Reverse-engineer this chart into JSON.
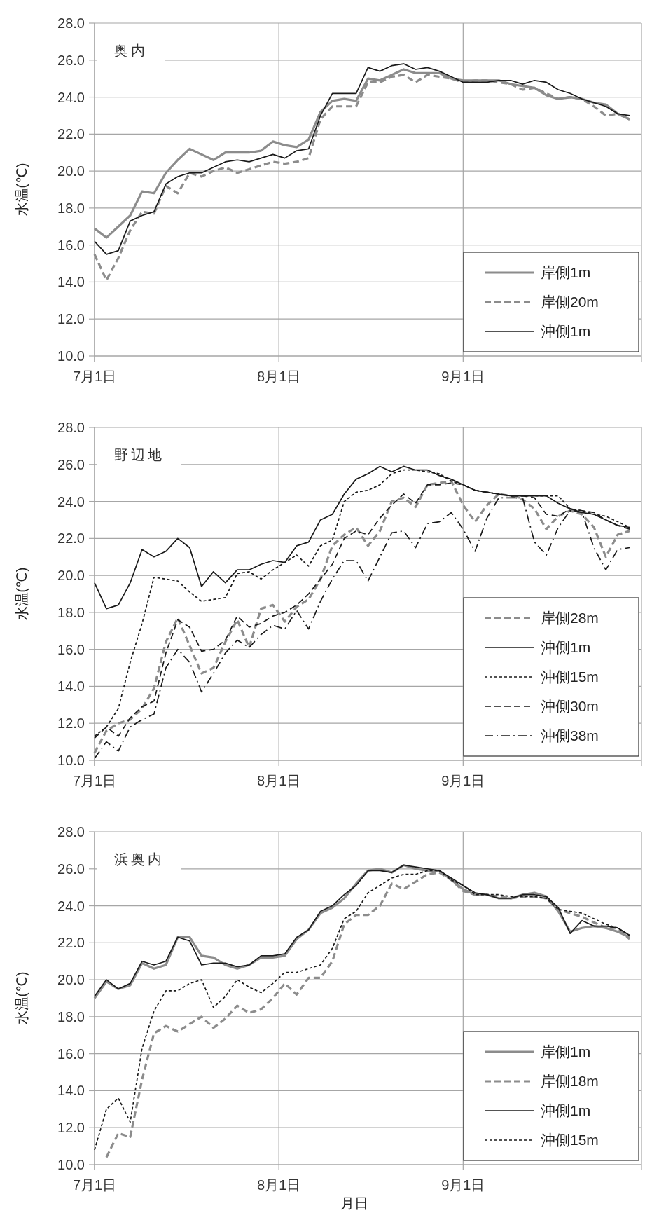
{
  "chart_data": [
    {
      "type": "line",
      "title": "奥内",
      "ylabel": "水温(℃)",
      "grid": true,
      "legend": "bottom right",
      "xlim": [
        "--07-01",
        "--10-01"
      ],
      "xticks": [
        {
          "value": "--07-01",
          "label": "7月1日"
        },
        {
          "value": "--08-01",
          "label": "8月1日"
        },
        {
          "value": "--09-01",
          "label": "9月1日"
        }
      ],
      "ylim": [
        10,
        28
      ],
      "yticks": [
        {
          "value": 10,
          "label": "10.0"
        },
        {
          "value": 12,
          "label": "12.0"
        },
        {
          "value": 14,
          "label": "14.0"
        },
        {
          "value": 16,
          "label": "16.0"
        },
        {
          "value": 18,
          "label": "18.0"
        },
        {
          "value": 20,
          "label": "20.0"
        },
        {
          "value": 22,
          "label": "22.0"
        },
        {
          "value": 24,
          "label": "24.0"
        },
        {
          "value": 26,
          "label": "26.0"
        },
        {
          "value": 28,
          "label": "28.0"
        }
      ],
      "x": [
        "--07-01",
        "--07-03",
        "--07-05",
        "--07-07",
        "--07-09",
        "--07-11",
        "--07-13",
        "--07-15",
        "--07-17",
        "--07-19",
        "--07-21",
        "--07-23",
        "--07-25",
        "--07-27",
        "--07-29",
        "--07-31",
        "--08-02",
        "--08-04",
        "--08-06",
        "--08-08",
        "--08-10",
        "--08-12",
        "--08-14",
        "--08-16",
        "--08-18",
        "--08-20",
        "--08-22",
        "--08-24",
        "--08-26",
        "--08-28",
        "--08-30",
        "--09-01",
        "--09-03",
        "--09-05",
        "--09-07",
        "--09-09",
        "--09-11",
        "--09-13",
        "--09-15",
        "--09-17",
        "--09-19",
        "--09-21",
        "--09-23",
        "--09-25",
        "--09-27",
        "--09-29"
      ],
      "series": [
        {
          "name": "岸側1m",
          "color": "#8c8c8c",
          "line_style": "solid",
          "values": [
            16.9,
            16.4,
            17.0,
            17.6,
            18.9,
            18.8,
            19.9,
            20.6,
            21.2,
            20.9,
            20.6,
            21.0,
            21.0,
            21.0,
            21.1,
            21.6,
            21.4,
            21.3,
            21.7,
            23.2,
            23.8,
            23.9,
            23.8,
            25.0,
            24.9,
            25.2,
            25.5,
            25.3,
            25.3,
            25.3,
            25.0,
            24.9,
            24.9,
            24.9,
            24.9,
            24.7,
            24.6,
            24.5,
            24.1,
            23.9,
            24.0,
            23.9,
            23.7,
            23.6,
            23.1,
            22.8
          ]
        },
        {
          "name": "岸側20m",
          "color": "#8c8c8c",
          "line_style": "dashed",
          "values": [
            15.5,
            14.1,
            15.3,
            16.8,
            17.8,
            17.7,
            19.2,
            18.8,
            19.9,
            19.7,
            20.0,
            20.2,
            19.9,
            20.1,
            20.3,
            20.5,
            20.4,
            20.5,
            20.7,
            22.8,
            23.5,
            23.5,
            23.5,
            24.8,
            24.8,
            25.1,
            25.2,
            24.8,
            25.2,
            25.1,
            25.0,
            24.8,
            24.9,
            24.9,
            24.8,
            24.7,
            24.4,
            24.5,
            24.2,
            23.9,
            24.0,
            23.9,
            23.5,
            23.0,
            23.1,
            22.8
          ]
        },
        {
          "name": "沖側1m",
          "color": "#1a1a1a",
          "line_style": "solid",
          "values": [
            16.2,
            15.5,
            15.7,
            17.3,
            17.6,
            17.8,
            19.3,
            19.7,
            19.9,
            19.9,
            20.2,
            20.5,
            20.6,
            20.5,
            20.7,
            20.9,
            20.7,
            21.1,
            21.2,
            23.0,
            24.2,
            24.2,
            24.2,
            25.6,
            25.4,
            25.7,
            25.8,
            25.5,
            25.6,
            25.4,
            25.1,
            24.8,
            24.8,
            24.8,
            24.9,
            24.9,
            24.7,
            24.9,
            24.8,
            24.4,
            24.2,
            23.9,
            23.7,
            23.5,
            23.1,
            23.0
          ]
        }
      ]
    },
    {
      "type": "line",
      "title": "野辺地",
      "ylabel": "水温(℃)",
      "grid": true,
      "legend": "bottom right",
      "xlim": [
        "--07-01",
        "--10-01"
      ],
      "xticks": [
        {
          "value": "--07-01",
          "label": "7月1日"
        },
        {
          "value": "--08-01",
          "label": "8月1日"
        },
        {
          "value": "--09-01",
          "label": "9月1日"
        }
      ],
      "ylim": [
        10,
        28
      ],
      "yticks": [
        {
          "value": 10,
          "label": "10.0"
        },
        {
          "value": 12,
          "label": "12.0"
        },
        {
          "value": 14,
          "label": "14.0"
        },
        {
          "value": 16,
          "label": "16.0"
        },
        {
          "value": 18,
          "label": "18.0"
        },
        {
          "value": 20,
          "label": "20.0"
        },
        {
          "value": 22,
          "label": "22.0"
        },
        {
          "value": 24,
          "label": "24.0"
        },
        {
          "value": 26,
          "label": "26.0"
        },
        {
          "value": 28,
          "label": "28.0"
        }
      ],
      "x": [
        "--07-01",
        "--07-03",
        "--07-05",
        "--07-07",
        "--07-09",
        "--07-11",
        "--07-13",
        "--07-15",
        "--07-17",
        "--07-19",
        "--07-21",
        "--07-23",
        "--07-25",
        "--07-27",
        "--07-29",
        "--07-31",
        "--08-02",
        "--08-04",
        "--08-06",
        "--08-08",
        "--08-10",
        "--08-12",
        "--08-14",
        "--08-16",
        "--08-18",
        "--08-20",
        "--08-22",
        "--08-24",
        "--08-26",
        "--08-28",
        "--08-30",
        "--09-01",
        "--09-03",
        "--09-05",
        "--09-07",
        "--09-09",
        "--09-11",
        "--09-13",
        "--09-15",
        "--09-17",
        "--09-19",
        "--09-21",
        "--09-23",
        "--09-25",
        "--09-27",
        "--09-29"
      ],
      "series": [
        {
          "name": "岸側28m",
          "color": "#8c8c8c",
          "line_style": "dashed",
          "values": [
            10.4,
            11.6,
            12.0,
            12.2,
            12.8,
            13.9,
            16.4,
            17.7,
            16.2,
            14.7,
            15.0,
            16.4,
            17.6,
            16.1,
            18.2,
            18.4,
            17.5,
            18.3,
            18.7,
            19.8,
            21.6,
            22.2,
            22.6,
            21.6,
            22.4,
            24.0,
            24.2,
            23.7,
            24.9,
            25.0,
            25.1,
            23.8,
            22.9,
            23.8,
            24.4,
            24.3,
            24.1,
            23.6,
            22.5,
            23.2,
            23.5,
            23.3,
            22.6,
            21.0,
            22.2,
            22.4
          ]
        },
        {
          "name": "沖側1m",
          "color": "#1a1a1a",
          "line_style": "solid",
          "values": [
            19.6,
            18.2,
            18.4,
            19.6,
            21.4,
            21.0,
            21.3,
            22.0,
            21.5,
            19.4,
            20.2,
            19.6,
            20.3,
            20.3,
            20.6,
            20.8,
            20.7,
            21.6,
            21.8,
            23.0,
            23.3,
            24.4,
            25.2,
            25.5,
            25.9,
            25.6,
            25.9,
            25.7,
            25.7,
            25.4,
            25.2,
            24.9,
            24.6,
            24.5,
            24.4,
            24.3,
            24.3,
            24.3,
            24.3,
            23.9,
            23.6,
            23.4,
            23.3,
            23.0,
            22.7,
            22.6
          ]
        },
        {
          "name": "沖側15m",
          "color": "#1a1a1a",
          "line_style": "dotted",
          "values": [
            11.3,
            11.8,
            12.8,
            15.3,
            17.4,
            19.9,
            19.8,
            19.7,
            19.1,
            18.6,
            18.7,
            18.8,
            20.1,
            20.2,
            19.8,
            20.3,
            20.7,
            21.1,
            20.5,
            21.6,
            21.9,
            24.0,
            24.5,
            24.6,
            24.9,
            25.5,
            25.7,
            25.7,
            25.6,
            25.5,
            25.1,
            24.9,
            24.6,
            24.5,
            24.4,
            24.3,
            24.3,
            24.3,
            24.3,
            24.3,
            23.6,
            23.5,
            23.3,
            23.2,
            22.9,
            22.6
          ]
        },
        {
          "name": "沖側30m",
          "color": "#1a1a1a",
          "line_style": "dashed",
          "values": [
            11.2,
            11.8,
            11.3,
            12.3,
            12.9,
            13.2,
            15.8,
            17.6,
            17.2,
            15.9,
            16.0,
            16.5,
            17.8,
            17.2,
            17.4,
            17.8,
            18.0,
            18.4,
            19.0,
            19.8,
            20.6,
            22.0,
            22.4,
            22.2,
            23.1,
            23.8,
            24.4,
            23.9,
            24.9,
            24.9,
            25.0,
            24.9,
            24.6,
            24.5,
            24.4,
            24.3,
            24.3,
            24.2,
            23.3,
            23.2,
            23.6,
            23.5,
            23.4,
            23.0,
            22.7,
            22.5
          ]
        },
        {
          "name": "沖側38m",
          "color": "#1a1a1a",
          "line_style": "dashdot",
          "values": [
            10.1,
            11.0,
            10.5,
            11.8,
            12.2,
            12.5,
            15.0,
            16.0,
            15.3,
            13.7,
            14.7,
            15.8,
            16.5,
            16.1,
            16.8,
            17.3,
            17.1,
            18.1,
            17.1,
            18.6,
            19.8,
            20.8,
            20.8,
            19.7,
            21.0,
            22.3,
            22.4,
            21.5,
            22.8,
            22.9,
            23.4,
            22.5,
            21.3,
            23.1,
            24.2,
            24.2,
            24.2,
            21.8,
            21.1,
            22.6,
            23.5,
            23.4,
            21.5,
            20.3,
            21.4,
            21.5
          ]
        }
      ]
    },
    {
      "type": "line",
      "title": "浜奥内",
      "ylabel": "水温(℃)",
      "xlabel": "月日",
      "grid": true,
      "legend": "bottom right",
      "xlim": [
        "--07-01",
        "--10-01"
      ],
      "xticks": [
        {
          "value": "--07-01",
          "label": "7月1日"
        },
        {
          "value": "--08-01",
          "label": "8月1日"
        },
        {
          "value": "--09-01",
          "label": "9月1日"
        }
      ],
      "ylim": [
        10,
        28
      ],
      "yticks": [
        {
          "value": 10,
          "label": "10.0"
        },
        {
          "value": 12,
          "label": "12.0"
        },
        {
          "value": 14,
          "label": "14.0"
        },
        {
          "value": 16,
          "label": "16.0"
        },
        {
          "value": 18,
          "label": "18.0"
        },
        {
          "value": 20,
          "label": "20.0"
        },
        {
          "value": 22,
          "label": "22.0"
        },
        {
          "value": 24,
          "label": "24.0"
        },
        {
          "value": 26,
          "label": "26.0"
        },
        {
          "value": 28,
          "label": "28.0"
        }
      ],
      "x": [
        "--07-01",
        "--07-03",
        "--07-05",
        "--07-07",
        "--07-09",
        "--07-11",
        "--07-13",
        "--07-15",
        "--07-17",
        "--07-19",
        "--07-21",
        "--07-23",
        "--07-25",
        "--07-27",
        "--07-29",
        "--07-31",
        "--08-02",
        "--08-04",
        "--08-06",
        "--08-08",
        "--08-10",
        "--08-12",
        "--08-14",
        "--08-16",
        "--08-18",
        "--08-20",
        "--08-22",
        "--08-24",
        "--08-26",
        "--08-28",
        "--08-30",
        "--09-01",
        "--09-03",
        "--09-05",
        "--09-07",
        "--09-09",
        "--09-11",
        "--09-13",
        "--09-15",
        "--09-17",
        "--09-19",
        "--09-21",
        "--09-23",
        "--09-25",
        "--09-27",
        "--09-29"
      ],
      "series": [
        {
          "name": "岸側1m",
          "color": "#8c8c8c",
          "line_style": "solid",
          "values": [
            19.0,
            19.9,
            19.5,
            19.7,
            20.9,
            20.6,
            20.8,
            22.3,
            22.3,
            21.3,
            21.2,
            20.8,
            20.6,
            20.8,
            21.2,
            21.2,
            21.3,
            22.2,
            22.7,
            23.6,
            23.9,
            24.4,
            25.2,
            25.9,
            26.0,
            25.8,
            26.2,
            26.0,
            25.9,
            25.9,
            25.4,
            24.9,
            24.6,
            24.6,
            24.4,
            24.4,
            24.6,
            24.7,
            24.5,
            23.7,
            22.6,
            22.8,
            22.9,
            22.8,
            22.6,
            22.3
          ]
        },
        {
          "name": "岸側18m",
          "color": "#8c8c8c",
          "line_style": "dashed",
          "values": [
            null,
            10.4,
            11.7,
            11.5,
            14.6,
            17.1,
            17.5,
            17.2,
            17.6,
            18.0,
            17.4,
            17.9,
            18.6,
            18.2,
            18.4,
            19.0,
            19.8,
            19.2,
            20.1,
            20.1,
            21.0,
            23.0,
            23.5,
            23.5,
            24.0,
            25.2,
            24.9,
            25.3,
            25.7,
            25.8,
            25.4,
            24.8,
            24.6,
            24.6,
            24.5,
            24.4,
            24.5,
            24.5,
            24.4,
            23.8,
            23.6,
            23.4,
            23.1,
            22.8,
            22.8,
            22.2
          ]
        },
        {
          "name": "沖側1m",
          "color": "#1a1a1a",
          "line_style": "solid",
          "values": [
            19.1,
            20.0,
            19.5,
            19.8,
            21.0,
            20.8,
            21.0,
            22.3,
            22.1,
            20.8,
            20.9,
            20.9,
            20.7,
            20.8,
            21.3,
            21.3,
            21.4,
            22.3,
            22.7,
            23.7,
            24.0,
            24.6,
            25.1,
            25.9,
            25.9,
            25.8,
            26.2,
            26.1,
            26.0,
            25.9,
            25.5,
            25.1,
            24.7,
            24.6,
            24.4,
            24.4,
            24.6,
            24.6,
            24.5,
            23.9,
            22.5,
            23.2,
            22.9,
            22.9,
            22.8,
            22.4
          ]
        },
        {
          "name": "沖側15m",
          "color": "#1a1a1a",
          "line_style": "dotted",
          "values": [
            10.8,
            13.0,
            13.6,
            12.3,
            16.3,
            18.3,
            19.4,
            19.4,
            19.8,
            20.0,
            18.5,
            19.1,
            20.0,
            19.6,
            19.3,
            19.8,
            20.4,
            20.4,
            20.6,
            20.8,
            21.7,
            23.3,
            23.7,
            24.7,
            25.1,
            25.5,
            25.7,
            25.7,
            25.9,
            25.9,
            25.4,
            25.1,
            24.6,
            24.6,
            24.6,
            24.5,
            24.5,
            24.5,
            24.4,
            23.8,
            23.7,
            23.6,
            23.3,
            23.0,
            22.8,
            22.4
          ]
        }
      ]
    }
  ]
}
